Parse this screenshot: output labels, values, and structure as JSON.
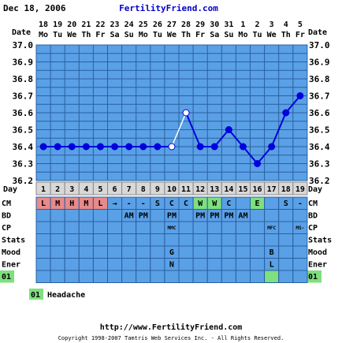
{
  "header": {
    "date": "Dec 18, 2006",
    "site": "FertilityFriend.com"
  },
  "labels": {
    "date_row": "Date",
    "day_row": "Day"
  },
  "chart_data": {
    "type": "line",
    "title": "",
    "dates": [
      {
        "d": "18",
        "w": "Mo"
      },
      {
        "d": "19",
        "w": "Tu"
      },
      {
        "d": "20",
        "w": "We"
      },
      {
        "d": "21",
        "w": "Th"
      },
      {
        "d": "22",
        "w": "Fr"
      },
      {
        "d": "23",
        "w": "Sa"
      },
      {
        "d": "24",
        "w": "Su"
      },
      {
        "d": "25",
        "w": "Mo"
      },
      {
        "d": "26",
        "w": "Tu"
      },
      {
        "d": "27",
        "w": "We"
      },
      {
        "d": "28",
        "w": "Th"
      },
      {
        "d": "29",
        "w": "Fr"
      },
      {
        "d": "30",
        "w": "Sa"
      },
      {
        "d": "31",
        "w": "Su"
      },
      {
        "d": "1",
        "w": "Mo"
      },
      {
        "d": "2",
        "w": "Tu"
      },
      {
        "d": "3",
        "w": "We"
      },
      {
        "d": "4",
        "w": "Th"
      },
      {
        "d": "5",
        "w": "Fr"
      }
    ],
    "days": [
      "1",
      "2",
      "3",
      "4",
      "5",
      "6",
      "7",
      "8",
      "9",
      "10",
      "11",
      "12",
      "13",
      "14",
      "15",
      "16",
      "17",
      "18",
      "19"
    ],
    "y_ticks": [
      "37.0",
      "36.9",
      "36.8",
      "36.7",
      "36.6",
      "36.5",
      "36.4",
      "36.3",
      "36.2"
    ],
    "ylim": [
      36.2,
      37.0
    ],
    "values": [
      36.4,
      36.4,
      36.4,
      36.4,
      36.4,
      36.4,
      36.4,
      36.4,
      36.4,
      36.4,
      36.6,
      36.4,
      36.4,
      36.5,
      36.4,
      36.3,
      36.4,
      36.6,
      36.7
    ],
    "open_points": [
      9,
      10
    ],
    "line_break_after": [
      9
    ],
    "line_color": "#0000dd",
    "grid": true
  },
  "rows": [
    {
      "label": "CM",
      "cells": [
        "L",
        "M",
        "H",
        "M",
        "L",
        "→",
        "-",
        "-",
        "S",
        "C",
        "C",
        "W",
        "W",
        "C",
        "",
        "E",
        "",
        "S",
        "-"
      ],
      "colors": [
        "#e88a8a",
        "#e88a8a",
        "#e88a8a",
        "#e88a8a",
        "#e88a8a",
        "",
        "",
        "",
        "",
        "",
        "",
        "#7ee07e",
        "#7ee07e",
        "",
        "",
        "#7ee07e",
        "",
        "",
        ""
      ]
    },
    {
      "label": "BD",
      "cells": [
        "",
        "",
        "",
        "",
        "",
        "",
        "AM",
        "PM",
        "",
        "PM",
        "",
        "PM",
        "PM",
        "PM",
        "AM",
        "",
        "",
        "",
        ""
      ]
    },
    {
      "label": "CP",
      "cells": [
        "",
        "",
        "",
        "",
        "",
        "",
        "",
        "",
        "",
        "MMC",
        "",
        "",
        "",
        "",
        "",
        "",
        "MFC",
        "",
        "MS-"
      ]
    },
    {
      "label": "Stats",
      "cells": [
        "",
        "",
        "",
        "",
        "",
        "",
        "",
        "",
        "",
        "",
        "",
        "",
        "",
        "",
        "",
        "",
        "",
        "",
        ""
      ]
    },
    {
      "label": "Mood",
      "cells": [
        "",
        "",
        "",
        "",
        "",
        "",
        "",
        "",
        "",
        "G",
        "",
        "",
        "",
        "",
        "",
        "",
        "B",
        "",
        ""
      ]
    },
    {
      "label": "Ener",
      "cells": [
        "",
        "",
        "",
        "",
        "",
        "",
        "",
        "",
        "",
        "N",
        "",
        "",
        "",
        "",
        "",
        "",
        "L",
        "",
        ""
      ]
    },
    {
      "label": "01",
      "cells": [
        "",
        "",
        "",
        "",
        "",
        "",
        "",
        "",
        "",
        "",
        "",
        "",
        "",
        "",
        "",
        "",
        "",
        "",
        ""
      ],
      "marks": [
        16
      ]
    }
  ],
  "legend": {
    "code": "01",
    "text": "Headache"
  },
  "footer": {
    "url": "http://www.FertilityFriend.com",
    "copyright": "Copyright 1998-2007 Tamtris Web Services Inc. - All Rights Reserved."
  },
  "colors": {
    "grid_bg": "#5aa0e6",
    "grid_line": "#2a5fa0",
    "row_bg": "#5aa0e6",
    "day_bg": "#d8d8d8",
    "red_cell": "#e88a8a",
    "green_cell": "#7ee07e",
    "code_green": "#7ee07e"
  }
}
